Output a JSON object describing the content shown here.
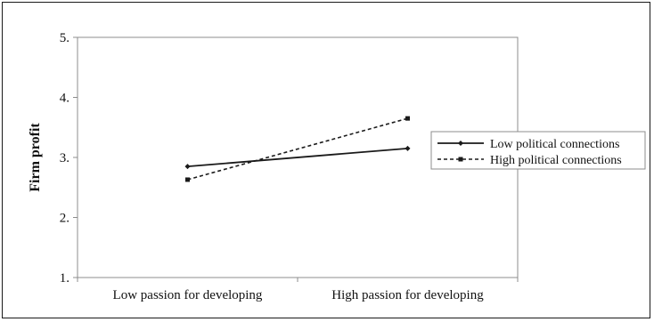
{
  "chart_data": {
    "type": "line",
    "categories": [
      "Low passion for developing",
      "High passion for developing"
    ],
    "series": [
      {
        "name": "Low political connections",
        "values": [
          2.85,
          3.15
        ],
        "dash": "solid",
        "marker": "diamond",
        "color": "#1a1a1a"
      },
      {
        "name": "High political connections",
        "values": [
          2.63,
          3.65
        ],
        "dash": "dashed",
        "marker": "square",
        "color": "#1a1a1a"
      }
    ],
    "ylabel": "Firm profit",
    "xlabel": "",
    "ylim": [
      1,
      5
    ],
    "yticks": [
      "1.",
      "2.",
      "3.",
      "4.",
      "5."
    ],
    "legend_position": "right",
    "grid": false
  }
}
